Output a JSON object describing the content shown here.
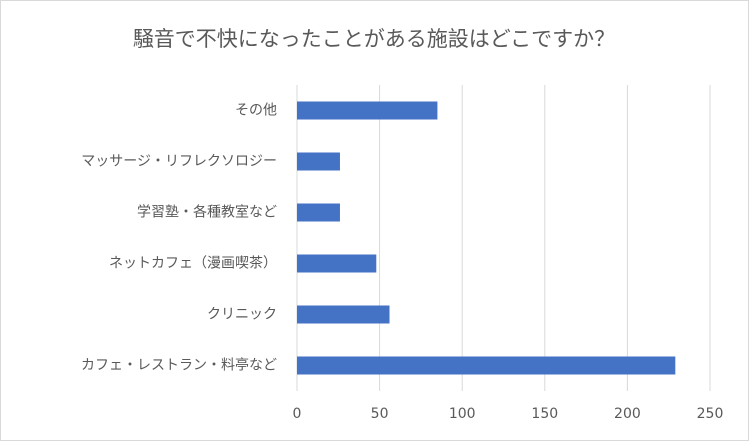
{
  "chart_data": {
    "type": "bar",
    "orientation": "horizontal",
    "title": "騒音で不快になったことがある施設はどこですか？",
    "categories": [
      "その他",
      "マッサージ・リフレクソロジー",
      "学習塾・各種教室など",
      "ネットカフェ（漫画喫茶）",
      "クリニック",
      "カフェ・レストラン・料亭など"
    ],
    "values": [
      85,
      26,
      26,
      48,
      56,
      229
    ],
    "color": "#4472c4",
    "xlim": [
      0,
      250
    ],
    "xticks": [
      0,
      50,
      100,
      150,
      200,
      250
    ],
    "grid": true
  }
}
